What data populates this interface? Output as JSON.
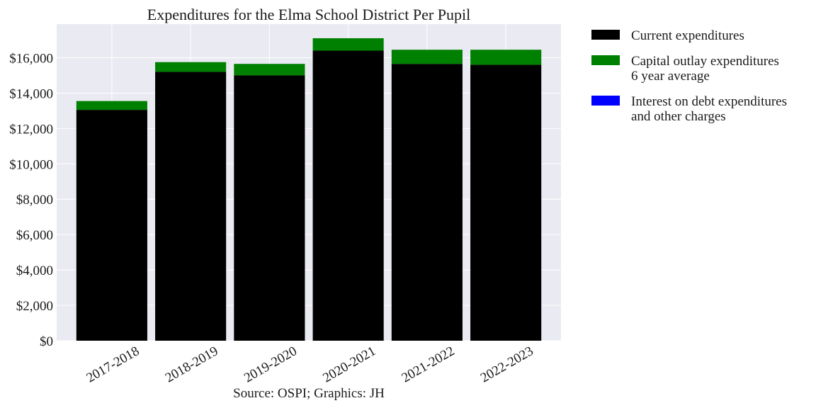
{
  "chart_data": {
    "type": "bar",
    "stacked": true,
    "title": "Expenditures for the Elma School District Per Pupil",
    "xlabel": "",
    "ylabel": "",
    "source_note": "Source: OSPI; Graphics: JH",
    "categories": [
      "2017-2018",
      "2018-2019",
      "2019-2020",
      "2020-2021",
      "2021-2022",
      "2022-2023"
    ],
    "series": [
      {
        "name": "Current expenditures",
        "color": "#000000",
        "values": [
          13050,
          15200,
          15000,
          16400,
          15650,
          15600
        ]
      },
      {
        "name": "Capital outlay expenditures\n6 year average",
        "color": "#008000",
        "values": [
          500,
          550,
          650,
          700,
          800,
          850
        ]
      },
      {
        "name": "Interest on debt expenditures\nand other charges",
        "color": "#0000ff",
        "values": [
          0,
          0,
          0,
          0,
          0,
          0
        ]
      }
    ],
    "ylim": [
      0,
      17900
    ],
    "yticks": [
      0,
      2000,
      4000,
      6000,
      8000,
      10000,
      12000,
      14000,
      16000
    ],
    "ytick_labels": [
      "$0",
      "$2,000",
      "$4,000",
      "$6,000",
      "$8,000",
      "$10,000",
      "$12,000",
      "$14,000",
      "$16,000"
    ],
    "grid": true,
    "legend_position": "outside-right"
  }
}
